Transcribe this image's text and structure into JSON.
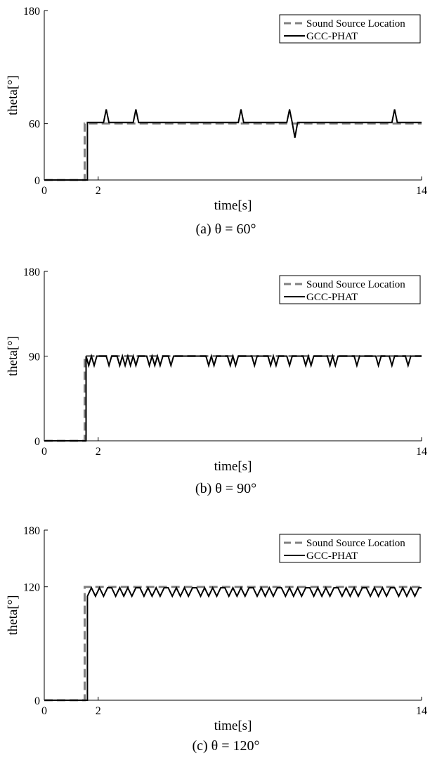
{
  "chart_data": [
    {
      "type": "line",
      "caption": "(a) θ = 60°",
      "xlabel": "time[s]",
      "ylabel": "theta[°]",
      "xlim": [
        0,
        14
      ],
      "ylim": [
        0,
        180
      ],
      "xticks": [
        0,
        2,
        14
      ],
      "yticks": [
        0,
        60,
        180
      ],
      "legend_position": "top-right",
      "series": [
        {
          "name": "Sound Source Location",
          "style": "dashed",
          "color": "#808080",
          "x": [
            0,
            1.5,
            1.5,
            14
          ],
          "y": [
            0,
            0,
            60,
            60
          ]
        },
        {
          "name": "GCC-PHAT",
          "style": "solid",
          "color": "#000000",
          "x": [
            0,
            1.6,
            1.6,
            2.2,
            2.3,
            2.4,
            3.3,
            3.4,
            3.5,
            7.2,
            7.3,
            7.4,
            9.0,
            9.1,
            9.2,
            9.3,
            9.4,
            12.9,
            13.0,
            13.1,
            14
          ],
          "y": [
            0,
            0,
            61,
            61,
            75,
            61,
            61,
            75,
            61,
            61,
            75,
            61,
            61,
            75,
            61,
            45,
            61,
            61,
            75,
            61,
            61
          ]
        }
      ]
    },
    {
      "type": "line",
      "caption": "(b) θ = 90°",
      "xlabel": "time[s]",
      "ylabel": "theta[°]",
      "xlim": [
        0,
        14
      ],
      "ylim": [
        0,
        180
      ],
      "xticks": [
        0,
        2,
        14
      ],
      "yticks": [
        0,
        90,
        180
      ],
      "legend_position": "top-right",
      "series": [
        {
          "name": "Sound Source Location",
          "style": "dashed",
          "color": "#808080",
          "x": [
            0,
            1.5,
            1.5,
            14
          ],
          "y": [
            0,
            0,
            90,
            90
          ]
        },
        {
          "name": "GCC-PHAT",
          "style": "solid",
          "color": "#000000",
          "x": [
            0,
            1.55,
            1.55,
            1.65,
            1.75,
            1.85,
            1.95,
            2.3,
            2.4,
            2.5,
            2.7,
            2.8,
            2.9,
            3.0,
            3.1,
            3.2,
            3.3,
            3.4,
            3.5,
            3.6,
            3.8,
            3.9,
            4.0,
            4.1,
            4.2,
            4.3,
            4.4,
            4.6,
            4.7,
            4.8,
            6.0,
            6.1,
            6.2,
            6.3,
            6.4,
            6.5,
            6.8,
            6.9,
            7.0,
            7.1,
            7.2,
            7.3,
            7.7,
            7.8,
            7.9,
            8.3,
            8.4,
            8.5,
            8.6,
            8.7,
            8.8,
            9.0,
            9.1,
            9.2,
            9.6,
            9.7,
            9.8,
            9.9,
            10.0,
            10.1,
            10.5,
            10.6,
            10.7,
            10.8,
            10.9,
            11.0,
            11.5,
            11.6,
            11.7,
            12.3,
            12.4,
            12.5,
            12.8,
            12.9,
            13.0,
            13.4,
            13.5,
            13.6,
            14
          ],
          "y": [
            0,
            0,
            90,
            80,
            90,
            80,
            90,
            90,
            80,
            90,
            90,
            80,
            90,
            80,
            90,
            80,
            90,
            80,
            90,
            90,
            90,
            80,
            90,
            80,
            90,
            80,
            90,
            90,
            80,
            90,
            90,
            80,
            90,
            80,
            90,
            90,
            90,
            80,
            90,
            80,
            90,
            90,
            90,
            80,
            90,
            90,
            80,
            90,
            80,
            90,
            90,
            90,
            80,
            90,
            90,
            80,
            90,
            80,
            90,
            90,
            90,
            80,
            90,
            80,
            90,
            90,
            90,
            80,
            90,
            90,
            80,
            90,
            90,
            80,
            90,
            90,
            80,
            90,
            90
          ]
        }
      ]
    },
    {
      "type": "line",
      "caption": "(c) θ = 120°",
      "xlabel": "time[s]",
      "ylabel": "theta[°]",
      "xlim": [
        0,
        14
      ],
      "ylim": [
        0,
        180
      ],
      "xticks": [
        0,
        2,
        14
      ],
      "yticks": [
        0,
        120,
        180
      ],
      "legend_position": "top-right",
      "series": [
        {
          "name": "Sound Source Location",
          "style": "dashed",
          "color": "#808080",
          "x": [
            0,
            1.5,
            1.5,
            14
          ],
          "y": [
            0,
            0,
            120,
            120
          ]
        },
        {
          "name": "GCC-PHAT",
          "style": "solid",
          "color": "#000000",
          "x": [
            0,
            1.6,
            1.6,
            1.75,
            1.9,
            2.05,
            2.2,
            2.35,
            2.5,
            2.65,
            2.8,
            2.95,
            3.1,
            3.25,
            3.4,
            3.55,
            3.7,
            3.85,
            4.0,
            4.15,
            4.3,
            4.45,
            4.6,
            4.75,
            4.9,
            5.05,
            5.2,
            5.35,
            5.5,
            5.65,
            5.8,
            5.95,
            6.1,
            6.25,
            6.4,
            6.55,
            6.7,
            6.85,
            7.0,
            7.15,
            7.3,
            7.45,
            7.6,
            7.75,
            7.9,
            8.05,
            8.2,
            8.35,
            8.5,
            8.65,
            8.8,
            8.95,
            9.1,
            9.25,
            9.4,
            9.55,
            9.7,
            9.85,
            10.0,
            10.15,
            10.3,
            10.45,
            10.6,
            10.75,
            10.9,
            11.05,
            11.2,
            11.35,
            11.5,
            11.65,
            11.8,
            11.95,
            12.1,
            12.25,
            12.4,
            12.55,
            12.7,
            12.85,
            13.0,
            13.15,
            13.3,
            13.45,
            13.6,
            13.75,
            13.9,
            14
          ],
          "y": [
            0,
            0,
            110,
            119,
            110,
            119,
            110,
            119,
            119,
            110,
            119,
            110,
            119,
            110,
            119,
            119,
            110,
            119,
            110,
            119,
            110,
            119,
            119,
            110,
            119,
            110,
            119,
            110,
            119,
            119,
            110,
            119,
            110,
            119,
            110,
            119,
            119,
            110,
            119,
            110,
            119,
            110,
            119,
            119,
            110,
            119,
            110,
            119,
            110,
            119,
            119,
            110,
            119,
            110,
            119,
            110,
            119,
            119,
            110,
            119,
            110,
            119,
            110,
            119,
            119,
            110,
            119,
            110,
            119,
            110,
            119,
            119,
            110,
            119,
            110,
            119,
            110,
            119,
            119,
            110,
            119,
            110,
            119,
            110,
            119,
            119
          ]
        }
      ]
    }
  ]
}
